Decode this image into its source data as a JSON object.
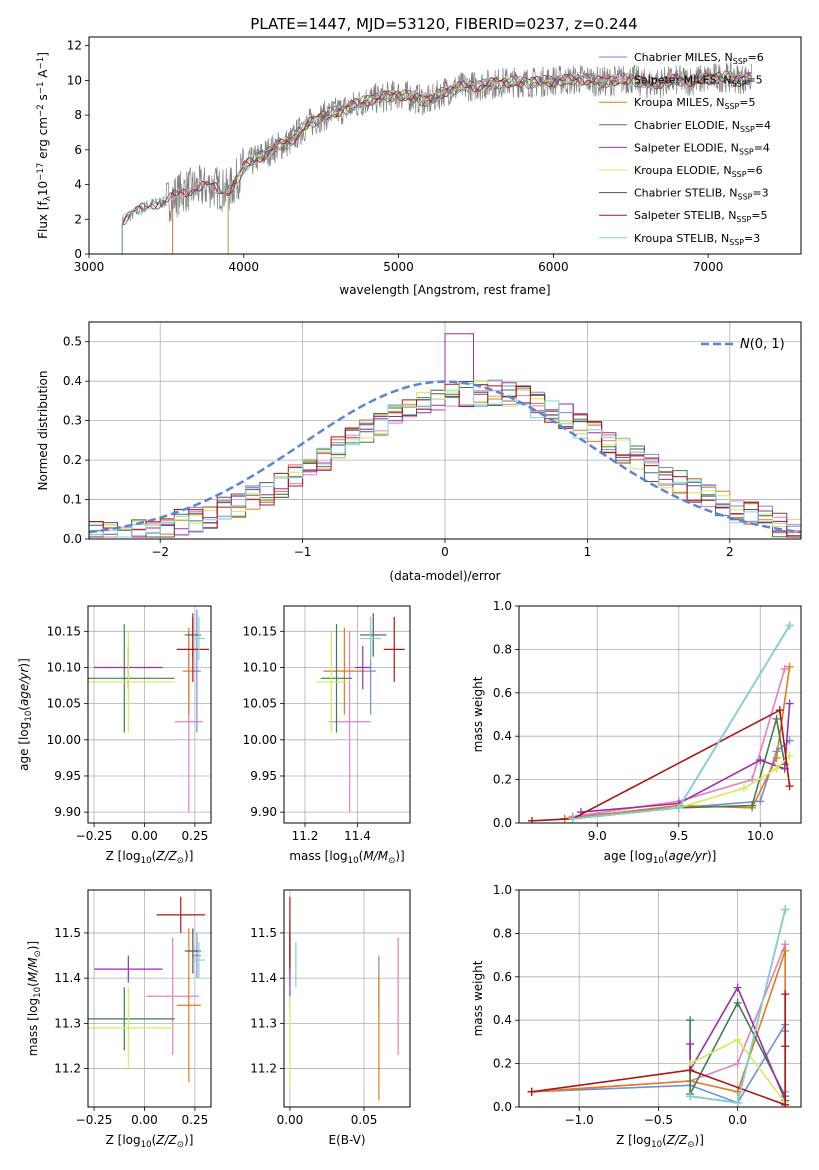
{
  "figure_title": "PLATE=1447, MJD=53120, FIBERID=0237, z=0.244",
  "colors": {
    "Chabrier MILES": "#6f8fd8",
    "Salpeter MILES": "#e77fc0",
    "Kroupa MILES": "#e07b21",
    "Chabrier ELODIE": "#3e7f4f",
    "Salpeter ELODIE": "#9b2fae",
    "Kroupa ELODIE": "#d4ec5a",
    "Chabrier STELIB": "#555555",
    "Salpeter STELIB": "#b01515",
    "Kroupa STELIB": "#7fd6d6",
    "normal": "#5b84d6",
    "data": "#808080"
  },
  "chart_data": [
    {
      "id": "spectrum",
      "type": "line",
      "title": "PLATE=1447, MJD=53120, FIBERID=0237, z=0.244",
      "xlabel": "wavelength [Angstrom, rest frame]",
      "ylabel": "Flux [f_λ 10^-17 erg cm^-2 s^-1 A^-1]",
      "xlim": [
        3000,
        7600
      ],
      "ylim": [
        0,
        12.5
      ],
      "xticks": [
        3000,
        4000,
        5000,
        6000,
        7000
      ],
      "yticks": [
        0,
        2,
        4,
        6,
        8,
        10,
        12
      ],
      "grid": false,
      "legend_position": "top-right",
      "legend": [
        {
          "name": "Chabrier MILES",
          "nssp": "6"
        },
        {
          "name": "Salpeter MILES",
          "nssp": "5"
        },
        {
          "name": "Kroupa MILES",
          "nssp": "5"
        },
        {
          "name": "Chabrier ELODIE",
          "nssp": "4"
        },
        {
          "name": "Salpeter ELODIE",
          "nssp": "4"
        },
        {
          "name": "Kroupa ELODIE",
          "nssp": "6"
        },
        {
          "name": "Chabrier STELIB",
          "nssp": "3"
        },
        {
          "name": "Salpeter STELIB",
          "nssp": "5"
        },
        {
          "name": "Kroupa STELIB",
          "nssp": "3"
        }
      ],
      "data_start": 3215,
      "data_end": 7280,
      "continuum": [
        [
          3215,
          1.9
        ],
        [
          3300,
          2.4
        ],
        [
          3400,
          2.9
        ],
        [
          3500,
          3.0
        ],
        [
          3600,
          3.6
        ],
        [
          3700,
          3.8
        ],
        [
          3800,
          3.9
        ],
        [
          3900,
          3.6
        ],
        [
          3950,
          4.2
        ],
        [
          4000,
          5.0
        ],
        [
          4100,
          5.6
        ],
        [
          4200,
          6.1
        ],
        [
          4300,
          6.5
        ],
        [
          4400,
          7.4
        ],
        [
          4500,
          7.9
        ],
        [
          4600,
          8.2
        ],
        [
          4700,
          8.5
        ],
        [
          4800,
          8.9
        ],
        [
          4900,
          9.0
        ],
        [
          5000,
          9.2
        ],
        [
          5100,
          9.0
        ],
        [
          5200,
          8.8
        ],
        [
          5300,
          9.4
        ],
        [
          5400,
          9.6
        ],
        [
          5500,
          9.7
        ],
        [
          5600,
          9.8
        ],
        [
          5700,
          9.9
        ],
        [
          5800,
          9.9
        ],
        [
          5900,
          9.9
        ],
        [
          6000,
          10.0
        ],
        [
          6100,
          10.0
        ],
        [
          6200,
          10.1
        ],
        [
          6300,
          9.9
        ],
        [
          6400,
          10.0
        ],
        [
          6500,
          10.1
        ],
        [
          6600,
          9.8
        ],
        [
          6700,
          9.9
        ],
        [
          6800,
          10.0
        ],
        [
          6900,
          10.0
        ],
        [
          7000,
          10.1
        ],
        [
          7100,
          10.2
        ],
        [
          7200,
          10.1
        ],
        [
          7280,
          10.1
        ]
      ],
      "model_starts": {
        "Chabrier MILES": 3540,
        "Salpeter MILES": 3540,
        "Kroupa MILES": 3540,
        "Chabrier ELODIE": 3900,
        "Salpeter ELODIE": 3900,
        "Kroupa ELODIE": 3900,
        "Chabrier STELIB": 3215,
        "Salpeter STELIB": 3215,
        "Kroupa STELIB": 3215
      }
    },
    {
      "id": "residual-hist",
      "type": "line",
      "xlabel": "(data-model)/error",
      "ylabel": "Normed distribution",
      "xlim": [
        -2.5,
        2.5
      ],
      "ylim": [
        0,
        0.55
      ],
      "xticks": [
        -2,
        -1,
        0,
        1,
        2
      ],
      "yticks": [
        0.0,
        0.1,
        0.2,
        0.3,
        0.4,
        0.5
      ],
      "grid": true,
      "legend_position": "top-right",
      "normal_label": "N(0, 1)"
    },
    {
      "id": "age-vs-Z",
      "type": "scatter",
      "xlabel": "Z [log10(Z/Z⊙)]",
      "ylabel": "age  [log10(age/yr)]",
      "xlim": [
        -0.28,
        0.33
      ],
      "ylim": [
        9.885,
        10.185
      ],
      "xticks": [
        -0.25,
        0.0,
        0.25
      ],
      "yticks": [
        9.9,
        9.95,
        10.0,
        10.05,
        10.1,
        10.15
      ],
      "grid": true,
      "points": [
        {
          "series": "Chabrier MILES",
          "x": 0.26,
          "xerr": 0.02,
          "y": 10.095,
          "yerr": 0.085
        },
        {
          "series": "Salpeter MILES",
          "x": 0.22,
          "xerr": 0.07,
          "y": 10.025,
          "yerr": 0.125
        },
        {
          "series": "Kroupa MILES",
          "x": 0.22,
          "xerr": 0.03,
          "y": 10.095,
          "yerr": 0.06
        },
        {
          "series": "Chabrier ELODIE",
          "x": -0.1,
          "xerr": 0.25,
          "y": 10.085,
          "yerr": 0.075
        },
        {
          "series": "Salpeter ELODIE",
          "x": -0.08,
          "xerr": 0.17,
          "y": 10.1,
          "yerr": 0.03
        },
        {
          "series": "Kroupa ELODIE",
          "x": -0.08,
          "xerr": 0.23,
          "y": 10.08,
          "yerr": 0.07
        },
        {
          "series": "Chabrier STELIB",
          "x": 0.24,
          "xerr": 0.04,
          "y": 10.145,
          "yerr": 0.03
        },
        {
          "series": "Salpeter STELIB",
          "x": 0.24,
          "xerr": 0.08,
          "y": 10.125,
          "yerr": 0.045
        },
        {
          "series": "Kroupa STELIB",
          "x": 0.27,
          "xerr": 0.03,
          "y": 10.14,
          "yerr": 0.03
        }
      ]
    },
    {
      "id": "age-vs-mass",
      "type": "scatter",
      "xlabel": "mass [log10(M/M⊙)]",
      "ylabel": "",
      "xlim": [
        11.12,
        11.6
      ],
      "ylim": [
        9.885,
        10.185
      ],
      "xticks": [
        11.2,
        11.4
      ],
      "yticks": [
        9.9,
        9.95,
        10.0,
        10.05,
        10.1,
        10.15
      ],
      "grid": true,
      "points": [
        {
          "series": "Chabrier MILES",
          "x": 11.45,
          "xerr": 0.02,
          "y": 10.095,
          "yerr": 0.06
        },
        {
          "series": "Salpeter MILES",
          "x": 11.37,
          "xerr": 0.08,
          "y": 10.025,
          "yerr": 0.125
        },
        {
          "series": "Kroupa MILES",
          "x": 11.35,
          "xerr": 0.08,
          "y": 10.095,
          "yerr": 0.06
        },
        {
          "series": "Chabrier ELODIE",
          "x": 11.32,
          "xerr": 0.06,
          "y": 10.085,
          "yerr": 0.075
        },
        {
          "series": "Salpeter ELODIE",
          "x": 11.42,
          "xerr": 0.03,
          "y": 10.1,
          "yerr": 0.03
        },
        {
          "series": "Kroupa ELODIE",
          "x": 11.3,
          "xerr": 0.06,
          "y": 10.08,
          "yerr": 0.07
        },
        {
          "series": "Chabrier STELIB",
          "x": 11.46,
          "xerr": 0.05,
          "y": 10.145,
          "yerr": 0.03
        },
        {
          "series": "Salpeter STELIB",
          "x": 11.54,
          "xerr": 0.04,
          "y": 10.125,
          "yerr": 0.045
        },
        {
          "series": "Kroupa STELIB",
          "x": 11.45,
          "xerr": 0.04,
          "y": 10.14,
          "yerr": 0.03
        }
      ]
    },
    {
      "id": "weight-vs-age",
      "type": "line",
      "xlabel": "age  [log10(age/yr)]",
      "ylabel": "mass weight",
      "xlim": [
        8.52,
        10.25
      ],
      "ylim": [
        0,
        1
      ],
      "xticks": [
        9.0,
        9.5,
        10.0
      ],
      "yticks": [
        0.0,
        0.2,
        0.4,
        0.6,
        0.8,
        1.0
      ],
      "grid": true,
      "series": [
        {
          "name": "Chabrier MILES",
          "x": [
            8.85,
            9.5,
            10.0,
            10.1,
            10.18
          ],
          "y": [
            0.03,
            0.07,
            0.1,
            0.33,
            0.38
          ]
        },
        {
          "name": "Salpeter MILES",
          "x": [
            8.85,
            9.5,
            9.95,
            10.15
          ],
          "y": [
            0.03,
            0.1,
            0.2,
            0.71
          ]
        },
        {
          "name": "Kroupa MILES",
          "x": [
            8.8,
            9.5,
            9.95,
            10.1,
            10.18
          ],
          "y": [
            0.02,
            0.08,
            0.07,
            0.3,
            0.72
          ]
        },
        {
          "name": "Chabrier ELODIE",
          "x": [
            8.85,
            9.5,
            9.95,
            10.1,
            10.15
          ],
          "y": [
            0.02,
            0.07,
            0.08,
            0.48,
            0.27
          ]
        },
        {
          "name": "Salpeter ELODIE",
          "x": [
            8.9,
            9.5,
            10.0,
            10.15,
            10.18
          ],
          "y": [
            0.05,
            0.09,
            0.29,
            0.25,
            0.55
          ]
        },
        {
          "name": "Kroupa ELODIE",
          "x": [
            8.85,
            9.5,
            9.9,
            10.1,
            10.18
          ],
          "y": [
            0.02,
            0.07,
            0.16,
            0.25,
            0.31
          ]
        },
        {
          "name": "Chabrier STELIB",
          "x": [
            8.85,
            9.5,
            10.18
          ],
          "y": [
            0.02,
            0.07,
            0.91
          ]
        },
        {
          "name": "Salpeter STELIB",
          "x": [
            8.6,
            8.85,
            10.12,
            10.18
          ],
          "y": [
            0.01,
            0.02,
            0.52,
            0.17
          ]
        },
        {
          "name": "Kroupa STELIB",
          "x": [
            8.85,
            9.5,
            10.18
          ],
          "y": [
            0.02,
            0.07,
            0.91
          ]
        }
      ]
    },
    {
      "id": "mass-vs-Z",
      "type": "scatter",
      "xlabel": "Z [log10(Z/Z⊙)]",
      "ylabel": "mass [log10(M/M⊙)]",
      "xlim": [
        -0.28,
        0.33
      ],
      "ylim": [
        11.115,
        11.595
      ],
      "xticks": [
        -0.25,
        0.0,
        0.25
      ],
      "yticks": [
        11.2,
        11.3,
        11.4,
        11.5
      ],
      "grid": true,
      "points": [
        {
          "series": "Chabrier MILES",
          "x": 0.26,
          "xerr": 0.02,
          "y": 11.45,
          "yerr": 0.05
        },
        {
          "series": "Salpeter MILES",
          "x": 0.14,
          "xerr": 0.13,
          "y": 11.36,
          "yerr": 0.13
        },
        {
          "series": "Kroupa MILES",
          "x": 0.22,
          "xerr": 0.06,
          "y": 11.34,
          "yerr": 0.17
        },
        {
          "series": "Chabrier ELODIE",
          "x": -0.1,
          "xerr": 0.25,
          "y": 11.31,
          "yerr": 0.07
        },
        {
          "series": "Salpeter ELODIE",
          "x": -0.08,
          "xerr": 0.17,
          "y": 11.42,
          "yerr": 0.03
        },
        {
          "series": "Kroupa ELODIE",
          "x": -0.08,
          "xerr": 0.23,
          "y": 11.29,
          "yerr": 0.09
        },
        {
          "series": "Chabrier STELIB",
          "x": 0.24,
          "xerr": 0.04,
          "y": 11.46,
          "yerr": 0.05
        },
        {
          "series": "Salpeter STELIB",
          "x": 0.18,
          "xerr": 0.12,
          "y": 11.54,
          "yerr": 0.04
        },
        {
          "series": "Kroupa STELIB",
          "x": 0.27,
          "xerr": 0.03,
          "y": 11.44,
          "yerr": 0.04
        }
      ]
    },
    {
      "id": "mass-vs-ebv",
      "type": "scatter",
      "xlabel": "E(B-V)",
      "ylabel": "",
      "xlim": [
        -0.004,
        0.081
      ],
      "ylim": [
        11.115,
        11.595
      ],
      "xticks": [
        0.0,
        0.05
      ],
      "yticks": [
        11.2,
        11.3,
        11.4,
        11.5
      ],
      "grid": true,
      "points": [
        {
          "series": "Chabrier MILES",
          "x": 0.06,
          "xerr": 0,
          "y": 11.39,
          "yerr": 0.06
        },
        {
          "series": "Salpeter MILES",
          "x": 0.073,
          "xerr": 0,
          "y": 11.36,
          "yerr": 0.13
        },
        {
          "series": "Kroupa MILES",
          "x": 0.06,
          "xerr": 0,
          "y": 11.27,
          "yerr": 0.14
        },
        {
          "series": "Chabrier ELODIE",
          "x": 0.0,
          "xerr": 0,
          "y": 11.45,
          "yerr": 0.05
        },
        {
          "series": "Salpeter ELODIE",
          "x": 0.0,
          "xerr": 0,
          "y": 11.42,
          "yerr": 0.08
        },
        {
          "series": "Kroupa ELODIE",
          "x": 0.0,
          "xerr": 0,
          "y": 11.26,
          "yerr": 0.1
        },
        {
          "series": "Chabrier STELIB",
          "x": 0.0,
          "xerr": 0,
          "y": 11.48,
          "yerr": 0.05
        },
        {
          "series": "Salpeter STELIB",
          "x": 0.0,
          "xerr": 0,
          "y": 11.5,
          "yerr": 0.08
        },
        {
          "series": "Kroupa STELIB",
          "x": 0.004,
          "xerr": 0,
          "y": 11.43,
          "yerr": 0.05
        }
      ]
    },
    {
      "id": "weight-vs-Z",
      "type": "line",
      "xlabel": "Z [log10(Z/Z⊙)]",
      "ylabel": "mass weight",
      "xlim": [
        -1.38,
        0.4
      ],
      "ylim": [
        0,
        1
      ],
      "xticks": [
        -1.0,
        -0.5,
        0.0
      ],
      "yticks": [
        0.0,
        0.2,
        0.4,
        0.6,
        0.8,
        1.0
      ],
      "grid": true,
      "series": [
        {
          "name": "Chabrier MILES",
          "x": [
            -1.3,
            -0.3,
            0.0,
            0.3,
            0.3
          ],
          "y": [
            0.07,
            0.1,
            0.02,
            0.38,
            0.35
          ]
        },
        {
          "name": "Salpeter MILES",
          "x": [
            -1.3,
            -0.3,
            0.0,
            0.3,
            0.3
          ],
          "y": [
            0.07,
            0.12,
            0.2,
            0.75,
            0.07
          ]
        },
        {
          "name": "Kroupa MILES",
          "x": [
            -1.3,
            -0.3,
            0.0,
            0.3,
            0.3
          ],
          "y": [
            0.07,
            0.12,
            0.07,
            0.72,
            0.01
          ]
        },
        {
          "name": "Chabrier ELODIE",
          "x": [
            -0.3,
            -0.3,
            0.0,
            0.3
          ],
          "y": [
            0.4,
            0.06,
            0.48,
            0.05
          ]
        },
        {
          "name": "Salpeter ELODIE",
          "x": [
            -0.3,
            -0.3,
            0.0,
            0.3
          ],
          "y": [
            0.29,
            0.17,
            0.55,
            0.03
          ]
        },
        {
          "name": "Kroupa ELODIE",
          "x": [
            -0.3,
            0.0,
            0.3
          ],
          "y": [
            0.2,
            0.31,
            0.02
          ]
        },
        {
          "name": "Chabrier STELIB",
          "x": [
            -0.3,
            0.0,
            0.3
          ],
          "y": [
            0.05,
            0.02,
            0.91
          ]
        },
        {
          "name": "Salpeter STELIB",
          "x": [
            -1.3,
            -0.3,
            0.3,
            0.3,
            0.3
          ],
          "y": [
            0.07,
            0.17,
            0.01,
            0.52,
            0.28
          ]
        },
        {
          "name": "Kroupa STELIB",
          "x": [
            -0.3,
            0.0,
            0.3
          ],
          "y": [
            0.05,
            0.02,
            0.91
          ]
        }
      ]
    }
  ]
}
